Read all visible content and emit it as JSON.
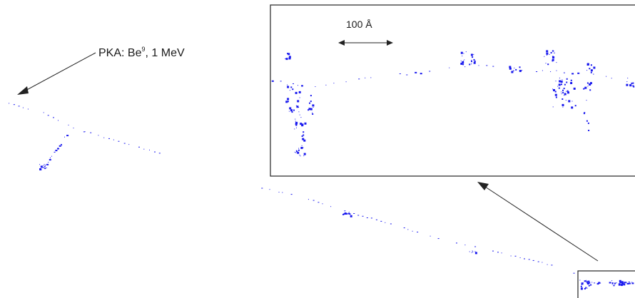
{
  "annotation": {
    "pka_text": "PKA: Be",
    "pka_superscript": "9",
    "pka_energy": ", 1 MeV"
  },
  "inset": {
    "scale_label": "100 Å"
  },
  "colors": {
    "track": "#1a1aee",
    "lines": "#222222"
  }
}
